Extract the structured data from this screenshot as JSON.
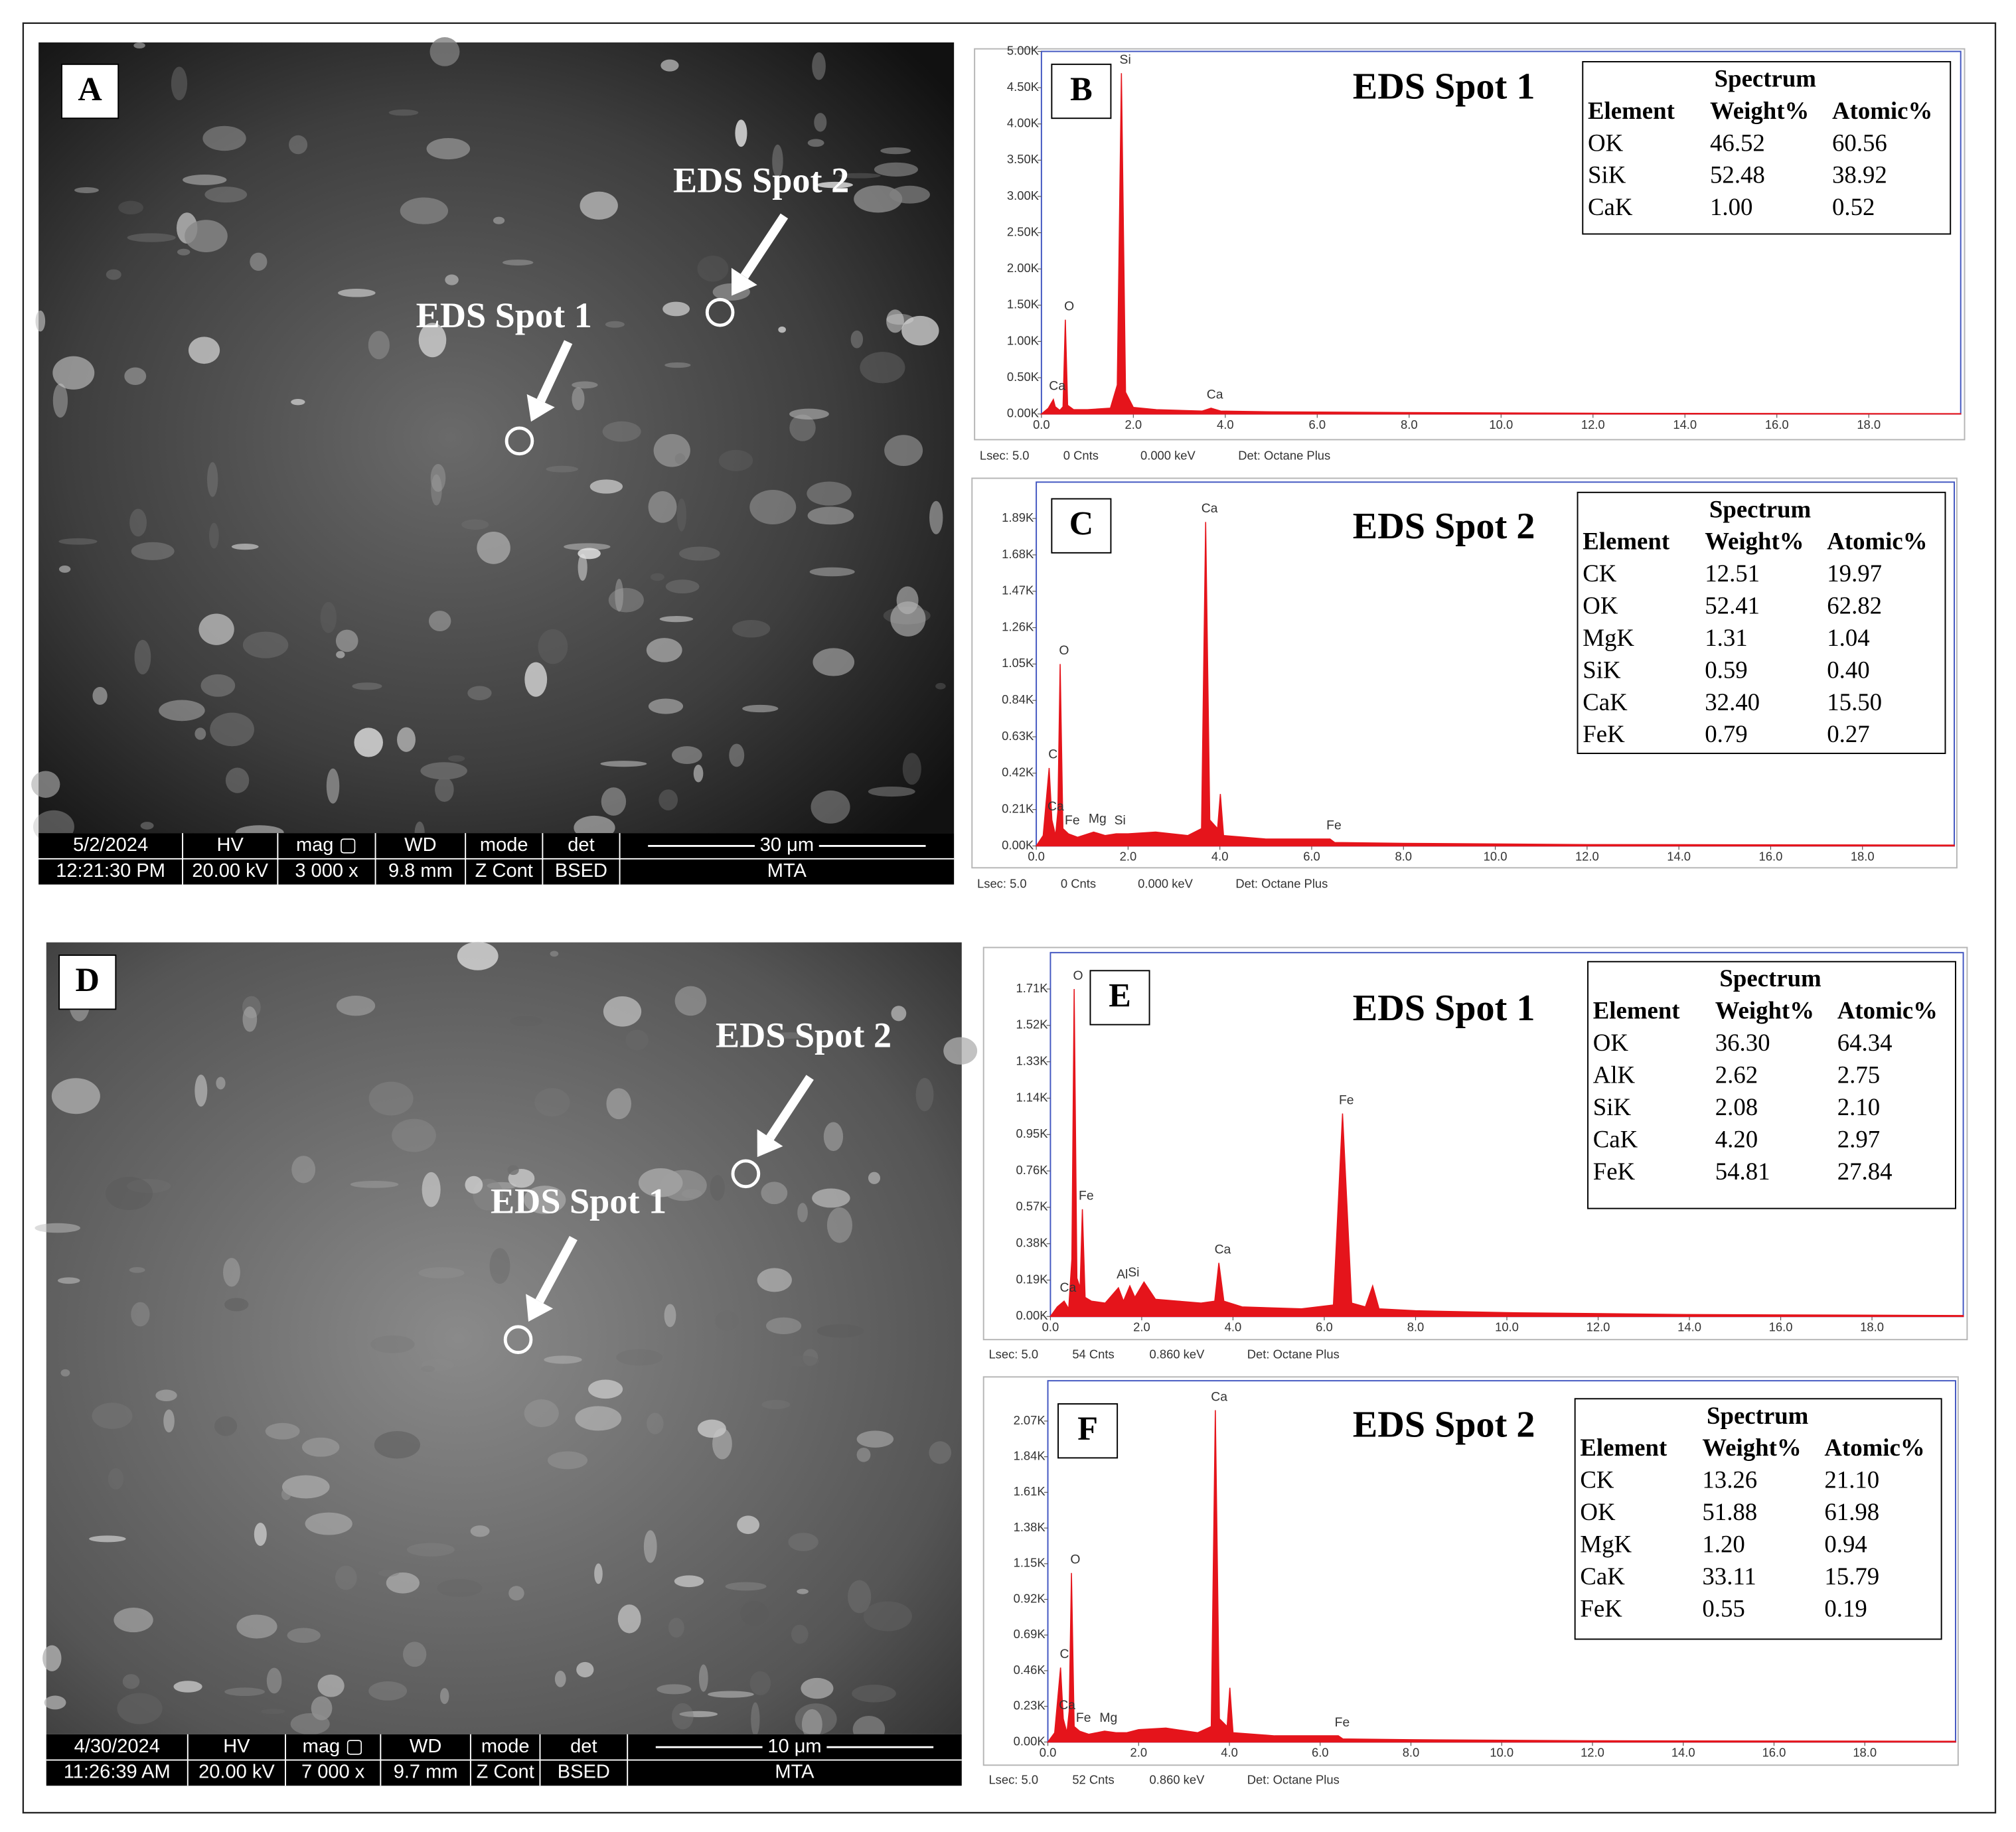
{
  "sem_images": [
    {
      "label": "A",
      "spot_labels": [
        "EDS Spot 1",
        "EDS Spot 2"
      ],
      "info": {
        "row1": [
          "5/2/2024",
          "HV",
          "mag ▢",
          "WD",
          "mode",
          "det",
          "30 μm"
        ],
        "row2": [
          "12:21:30 PM",
          "20.00 kV",
          "3 000 x",
          "9.8 mm",
          "Z Cont",
          "BSED",
          "MTA"
        ]
      }
    },
    {
      "label": "D",
      "spot_labels": [
        "EDS Spot 1",
        "EDS Spot 2"
      ],
      "info": {
        "row1": [
          "4/30/2024",
          "HV",
          "mag ▢",
          "WD",
          "mode",
          "det",
          "10 μm"
        ],
        "row2": [
          "11:26:39 AM",
          "20.00 kV",
          "7 000 x",
          "9.7 mm",
          "Z Cont",
          "BSED",
          "MTA"
        ]
      }
    }
  ],
  "chart_data": [
    {
      "type": "area",
      "panel_label": "B",
      "title": "EDS Spot 1",
      "color": "#e5141b",
      "table": {
        "title": "Spectrum",
        "columns": [
          "Element",
          "Weight%",
          "Atomic%"
        ],
        "rows": [
          [
            "OK",
            "46.52",
            "60.56"
          ],
          [
            "SiK",
            "52.48",
            "38.92"
          ],
          [
            "CaK",
            "1.00",
            "0.52"
          ]
        ]
      },
      "footer": [
        "Lsec: 5.0",
        "0 Cnts",
        "0.000 keV",
        "Det: Octane Plus"
      ],
      "xlim": [
        0,
        20
      ],
      "xticks": [
        {
          "value": 0,
          "label": "0.0"
        },
        {
          "value": 2,
          "label": "2.0"
        },
        {
          "value": 4,
          "label": "4.0"
        },
        {
          "value": 6,
          "label": "6.0"
        },
        {
          "value": 8,
          "label": "8.0"
        },
        {
          "value": 10,
          "label": "10.0"
        },
        {
          "value": 12,
          "label": "12.0"
        },
        {
          "value": 14,
          "label": "14.0"
        },
        {
          "value": 16,
          "label": "16.0"
        },
        {
          "value": 18,
          "label": "18.0"
        }
      ],
      "ylim": [
        0,
        5000
      ],
      "yticks": [
        {
          "value": 0,
          "label": "0.00K"
        },
        {
          "value": 500,
          "label": "0.50K"
        },
        {
          "value": 1000,
          "label": "1.00K"
        },
        {
          "value": 1500,
          "label": "1.50K"
        },
        {
          "value": 2000,
          "label": "2.00K"
        },
        {
          "value": 2500,
          "label": "2.50K"
        },
        {
          "value": 3000,
          "label": "3.00K"
        },
        {
          "value": 3500,
          "label": "3.50K"
        },
        {
          "value": 4000,
          "label": "4.00K"
        },
        {
          "value": 4500,
          "label": "4.50K"
        },
        {
          "value": 5000,
          "label": "5.00K"
        }
      ],
      "x": [
        0,
        0.15,
        0.26,
        0.3,
        0.4,
        0.47,
        0.52,
        0.57,
        0.7,
        1.0,
        1.5,
        1.65,
        1.74,
        1.83,
        2.0,
        2.5,
        3.5,
        3.69,
        3.9,
        5,
        8,
        12,
        20
      ],
      "values": [
        0,
        80,
        200,
        100,
        50,
        100,
        1300,
        120,
        60,
        60,
        80,
        400,
        4700,
        300,
        90,
        60,
        40,
        80,
        40,
        30,
        20,
        10,
        5
      ],
      "peaks": [
        {
          "label": "Ca",
          "x": 0.26,
          "y": 200
        },
        {
          "label": "O",
          "x": 0.52,
          "y": 1300
        },
        {
          "label": "Si",
          "x": 1.74,
          "y": 4700
        },
        {
          "label": "Ca",
          "x": 3.69,
          "y": 80
        }
      ]
    },
    {
      "type": "area",
      "panel_label": "C",
      "title": "EDS Spot 2",
      "color": "#e5141b",
      "table": {
        "title": "Spectrum",
        "columns": [
          "Element",
          "Weight%",
          "Atomic%"
        ],
        "rows": [
          [
            "CK",
            "12.51",
            "19.97"
          ],
          [
            "OK",
            "52.41",
            "62.82"
          ],
          [
            "MgK",
            "1.31",
            "1.04"
          ],
          [
            "SiK",
            "0.59",
            "0.40"
          ],
          [
            "CaK",
            "32.40",
            "15.50"
          ],
          [
            "FeK",
            "0.79",
            "0.27"
          ]
        ]
      },
      "footer": [
        "Lsec: 5.0",
        "0 Cnts",
        "0.000 keV",
        "Det: Octane Plus"
      ],
      "xlim": [
        0,
        20
      ],
      "xticks": [
        {
          "value": 0,
          "label": "0.0"
        },
        {
          "value": 2,
          "label": "2.0"
        },
        {
          "value": 4,
          "label": "4.0"
        },
        {
          "value": 6,
          "label": "6.0"
        },
        {
          "value": 8,
          "label": "8.0"
        },
        {
          "value": 10,
          "label": "10.0"
        },
        {
          "value": 12,
          "label": "12.0"
        },
        {
          "value": 14,
          "label": "14.0"
        },
        {
          "value": 16,
          "label": "16.0"
        },
        {
          "value": 18,
          "label": "18.0"
        }
      ],
      "ylim": [
        0,
        2100
      ],
      "yticks": [
        {
          "value": 0,
          "label": "0.00K"
        },
        {
          "value": 210,
          "label": "0.21K"
        },
        {
          "value": 420,
          "label": "0.42K"
        },
        {
          "value": 630,
          "label": "0.63K"
        },
        {
          "value": 840,
          "label": "0.84K"
        },
        {
          "value": 1050,
          "label": "1.05K"
        },
        {
          "value": 1260,
          "label": "1.26K"
        },
        {
          "value": 1470,
          "label": "1.47K"
        },
        {
          "value": 1680,
          "label": "1.68K"
        },
        {
          "value": 1890,
          "label": "1.89K"
        }
      ],
      "x": [
        0,
        0.15,
        0.28,
        0.34,
        0.42,
        0.47,
        0.52,
        0.58,
        0.7,
        0.9,
        1.25,
        1.5,
        1.74,
        2.0,
        2.6,
        3.3,
        3.6,
        3.69,
        3.78,
        3.95,
        4.01,
        4.08,
        5,
        6.4,
        6.5,
        8,
        12,
        20
      ],
      "values": [
        0,
        60,
        450,
        150,
        60,
        200,
        1050,
        100,
        70,
        50,
        80,
        60,
        70,
        70,
        80,
        60,
        100,
        1870,
        150,
        100,
        300,
        60,
        40,
        40,
        20,
        15,
        8,
        5
      ],
      "peaks": [
        {
          "label": "C",
          "x": 0.28,
          "y": 450
        },
        {
          "label": "Ca",
          "x": 0.34,
          "y": 150
        },
        {
          "label": "O",
          "x": 0.52,
          "y": 1050
        },
        {
          "label": "Fe",
          "x": 0.7,
          "y": 70
        },
        {
          "label": "Mg",
          "x": 1.25,
          "y": 80
        },
        {
          "label": "Si",
          "x": 1.74,
          "y": 70
        },
        {
          "label": "Ca",
          "x": 3.69,
          "y": 1870
        },
        {
          "label": "Fe",
          "x": 6.4,
          "y": 40
        }
      ]
    },
    {
      "type": "area",
      "panel_label": "E",
      "title": "EDS Spot 1",
      "color": "#e5141b",
      "table": {
        "title": "Spectrum",
        "columns": [
          "Element",
          "Weight%",
          "Atomic%"
        ],
        "rows": [
          [
            "OK",
            "36.30",
            "64.34"
          ],
          [
            "AlK",
            "2.62",
            "2.75"
          ],
          [
            "SiK",
            "2.08",
            "2.10"
          ],
          [
            "CaK",
            "4.20",
            "2.97"
          ],
          [
            "FeK",
            "54.81",
            "27.84"
          ]
        ]
      },
      "footer": [
        "Lsec: 5.0",
        "54 Cnts",
        "0.860 keV",
        "Det: Octane Plus"
      ],
      "xlim": [
        0,
        20
      ],
      "xticks": [
        {
          "value": 0,
          "label": "0.0"
        },
        {
          "value": 2,
          "label": "2.0"
        },
        {
          "value": 4,
          "label": "4.0"
        },
        {
          "value": 6,
          "label": "6.0"
        },
        {
          "value": 8,
          "label": "8.0"
        },
        {
          "value": 10,
          "label": "10.0"
        },
        {
          "value": 12,
          "label": "12.0"
        },
        {
          "value": 14,
          "label": "14.0"
        },
        {
          "value": 16,
          "label": "16.0"
        },
        {
          "value": 18,
          "label": "18.0"
        }
      ],
      "ylim": [
        0,
        1900
      ],
      "yticks": [
        {
          "value": 0,
          "label": "0.00K"
        },
        {
          "value": 190,
          "label": "0.19K"
        },
        {
          "value": 380,
          "label": "0.38K"
        },
        {
          "value": 570,
          "label": "0.57K"
        },
        {
          "value": 760,
          "label": "0.76K"
        },
        {
          "value": 950,
          "label": "0.95K"
        },
        {
          "value": 1140,
          "label": "1.14K"
        },
        {
          "value": 1330,
          "label": "1.33K"
        },
        {
          "value": 1520,
          "label": "1.52K"
        },
        {
          "value": 1710,
          "label": "1.71K"
        }
      ],
      "x": [
        0,
        0.15,
        0.3,
        0.4,
        0.47,
        0.52,
        0.58,
        0.65,
        0.7,
        0.76,
        0.9,
        1.2,
        1.49,
        1.6,
        1.74,
        1.85,
        2.05,
        2.3,
        2.8,
        3.3,
        3.6,
        3.69,
        3.8,
        4.2,
        5.5,
        6.2,
        6.4,
        6.6,
        6.9,
        7.06,
        7.2,
        8,
        10,
        14,
        20
      ],
      "values": [
        0,
        50,
        80,
        40,
        300,
        1710,
        200,
        150,
        560,
        100,
        80,
        70,
        150,
        80,
        160,
        100,
        180,
        90,
        80,
        70,
        80,
        280,
        80,
        50,
        40,
        60,
        1060,
        70,
        50,
        160,
        40,
        30,
        20,
        10,
        5
      ],
      "peaks": [
        {
          "label": "Ca",
          "x": 0.3,
          "y": 80
        },
        {
          "label": "O",
          "x": 0.52,
          "y": 1710
        },
        {
          "label": "Fe",
          "x": 0.7,
          "y": 560
        },
        {
          "label": "Al",
          "x": 1.49,
          "y": 150
        },
        {
          "label": "Si",
          "x": 1.74,
          "y": 160
        },
        {
          "label": "Ca",
          "x": 3.69,
          "y": 280
        },
        {
          "label": "Fe",
          "x": 6.4,
          "y": 1060
        }
      ]
    },
    {
      "type": "area",
      "panel_label": "F",
      "title": "EDS Spot 2",
      "color": "#e5141b",
      "table": {
        "title": "Spectrum",
        "columns": [
          "Element",
          "Weight%",
          "Atomic%"
        ],
        "rows": [
          [
            "CK",
            "13.26",
            "21.10"
          ],
          [
            "OK",
            "51.88",
            "61.98"
          ],
          [
            "MgK",
            "1.20",
            "0.94"
          ],
          [
            "CaK",
            "33.11",
            "15.79"
          ],
          [
            "FeK",
            "0.55",
            "0.19"
          ]
        ]
      },
      "footer": [
        "Lsec: 5.0",
        "52 Cnts",
        "0.860 keV",
        "Det: Octane Plus"
      ],
      "xlim": [
        0,
        20
      ],
      "xticks": [
        {
          "value": 0,
          "label": "0.0"
        },
        {
          "value": 2,
          "label": "2.0"
        },
        {
          "value": 4,
          "label": "4.0"
        },
        {
          "value": 6,
          "label": "6.0"
        },
        {
          "value": 8,
          "label": "8.0"
        },
        {
          "value": 10,
          "label": "10.0"
        },
        {
          "value": 12,
          "label": "12.0"
        },
        {
          "value": 14,
          "label": "14.0"
        },
        {
          "value": 16,
          "label": "16.0"
        },
        {
          "value": 18,
          "label": "18.0"
        }
      ],
      "ylim": [
        0,
        2330
      ],
      "yticks": [
        {
          "value": 0,
          "label": "0.00K"
        },
        {
          "value": 230,
          "label": "0.23K"
        },
        {
          "value": 460,
          "label": "0.46K"
        },
        {
          "value": 690,
          "label": "0.69K"
        },
        {
          "value": 920,
          "label": "0.92K"
        },
        {
          "value": 1150,
          "label": "1.15K"
        },
        {
          "value": 1380,
          "label": "1.38K"
        },
        {
          "value": 1610,
          "label": "1.61K"
        },
        {
          "value": 1840,
          "label": "1.84K"
        },
        {
          "value": 2070,
          "label": "2.07K"
        }
      ],
      "x": [
        0,
        0.15,
        0.28,
        0.34,
        0.42,
        0.47,
        0.52,
        0.58,
        0.7,
        0.9,
        1.25,
        1.5,
        1.74,
        2.0,
        2.6,
        3.3,
        3.6,
        3.69,
        3.78,
        3.95,
        4.01,
        4.08,
        5,
        6.4,
        6.5,
        8,
        12,
        20
      ],
      "values": [
        0,
        60,
        480,
        150,
        60,
        200,
        1090,
        100,
        70,
        50,
        70,
        60,
        60,
        80,
        90,
        60,
        100,
        2140,
        150,
        100,
        350,
        60,
        40,
        40,
        20,
        15,
        8,
        5
      ],
      "peaks": [
        {
          "label": "C",
          "x": 0.28,
          "y": 480
        },
        {
          "label": "Ca",
          "x": 0.34,
          "y": 150
        },
        {
          "label": "O",
          "x": 0.52,
          "y": 1090
        },
        {
          "label": "Fe",
          "x": 0.7,
          "y": 70
        },
        {
          "label": "Mg",
          "x": 1.25,
          "y": 70
        },
        {
          "label": "Ca",
          "x": 3.69,
          "y": 2140
        },
        {
          "label": "Fe",
          "x": 6.4,
          "y": 40
        }
      ]
    }
  ]
}
